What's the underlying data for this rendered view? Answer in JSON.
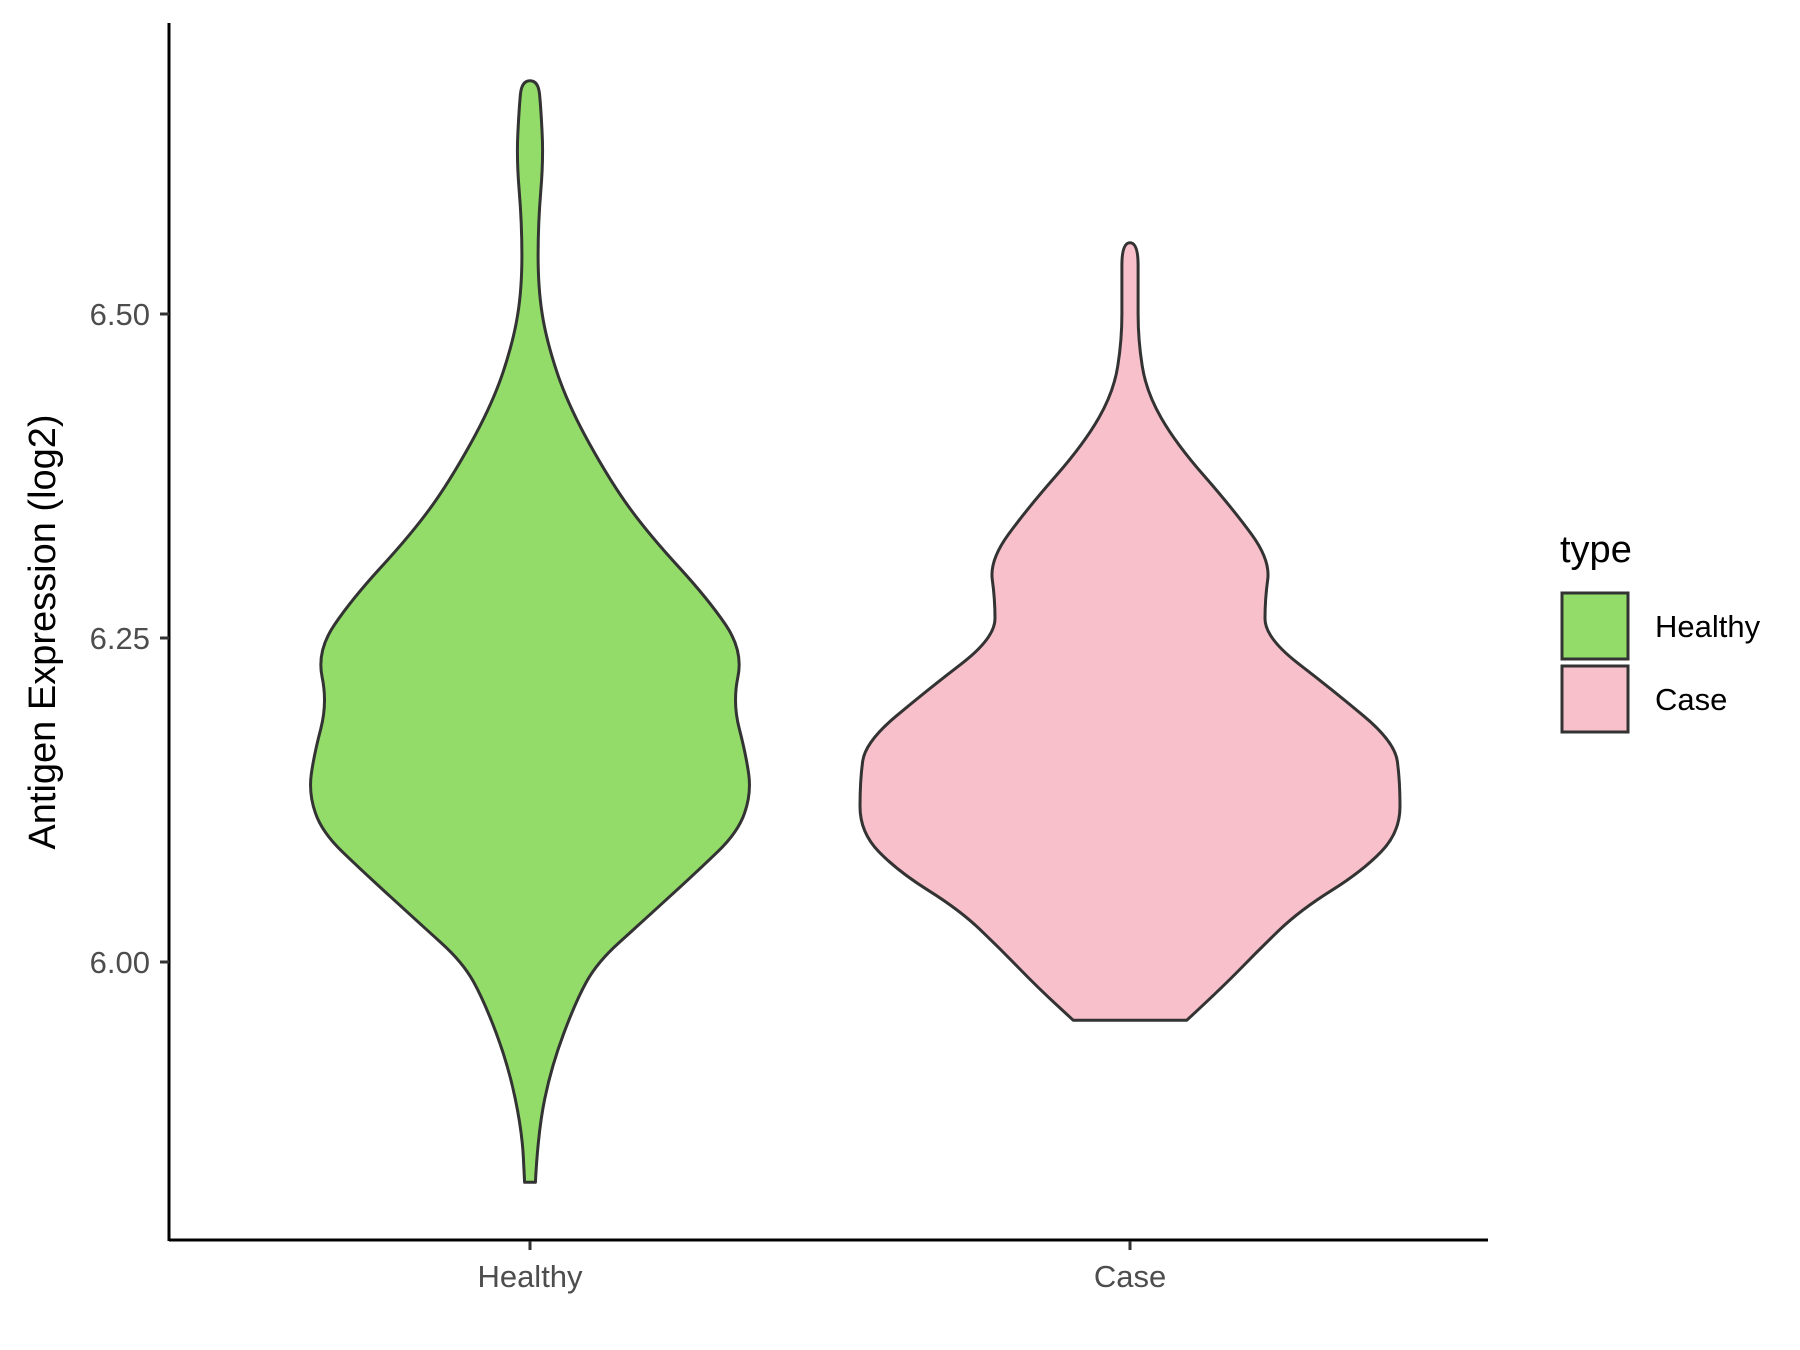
{
  "chart_data": {
    "type": "violin",
    "ylabel": "Antigen Expression (log2)",
    "xlabel": "",
    "categories": [
      "Healthy",
      "Case"
    ],
    "yticks": [
      6.0,
      6.25,
      6.5
    ],
    "ytick_labels": [
      "6.00",
      "6.25",
      "6.50"
    ],
    "ylim": [
      5.79,
      6.73
    ],
    "legend": {
      "title": "type",
      "position": "right",
      "entries": [
        "Healthy",
        "Case"
      ]
    },
    "series": [
      {
        "name": "Healthy",
        "color": "#93dc6a",
        "min": 5.83,
        "max": 6.68,
        "density_profile": [
          [
            5.83,
            0.02
          ],
          [
            5.87,
            0.03
          ],
          [
            5.92,
            0.08
          ],
          [
            5.97,
            0.17
          ],
          [
            6.0,
            0.25
          ],
          [
            6.03,
            0.41
          ],
          [
            6.07,
            0.62
          ],
          [
            6.1,
            0.77
          ],
          [
            6.13,
            0.82
          ],
          [
            6.16,
            0.8
          ],
          [
            6.2,
            0.75
          ],
          [
            6.24,
            0.79
          ],
          [
            6.28,
            0.66
          ],
          [
            6.33,
            0.44
          ],
          [
            6.37,
            0.3
          ],
          [
            6.43,
            0.14
          ],
          [
            6.48,
            0.06
          ],
          [
            6.52,
            0.03
          ],
          [
            6.57,
            0.03
          ],
          [
            6.62,
            0.05
          ],
          [
            6.66,
            0.04
          ],
          [
            6.68,
            0.03
          ]
        ]
      },
      {
        "name": "Case",
        "color": "#f8c0cb",
        "min": 5.955,
        "max": 6.555,
        "density_profile": [
          [
            5.955,
            0.21
          ],
          [
            5.98,
            0.34
          ],
          [
            6.01,
            0.48
          ],
          [
            6.04,
            0.63
          ],
          [
            6.07,
            0.86
          ],
          [
            6.1,
            1.0
          ],
          [
            6.14,
            1.0
          ],
          [
            6.17,
            0.98
          ],
          [
            6.21,
            0.75
          ],
          [
            6.25,
            0.5
          ],
          [
            6.28,
            0.5
          ],
          [
            6.31,
            0.52
          ],
          [
            6.35,
            0.38
          ],
          [
            6.4,
            0.17
          ],
          [
            6.44,
            0.06
          ],
          [
            6.48,
            0.03
          ],
          [
            6.52,
            0.03
          ],
          [
            6.555,
            0.03
          ]
        ]
      }
    ]
  }
}
